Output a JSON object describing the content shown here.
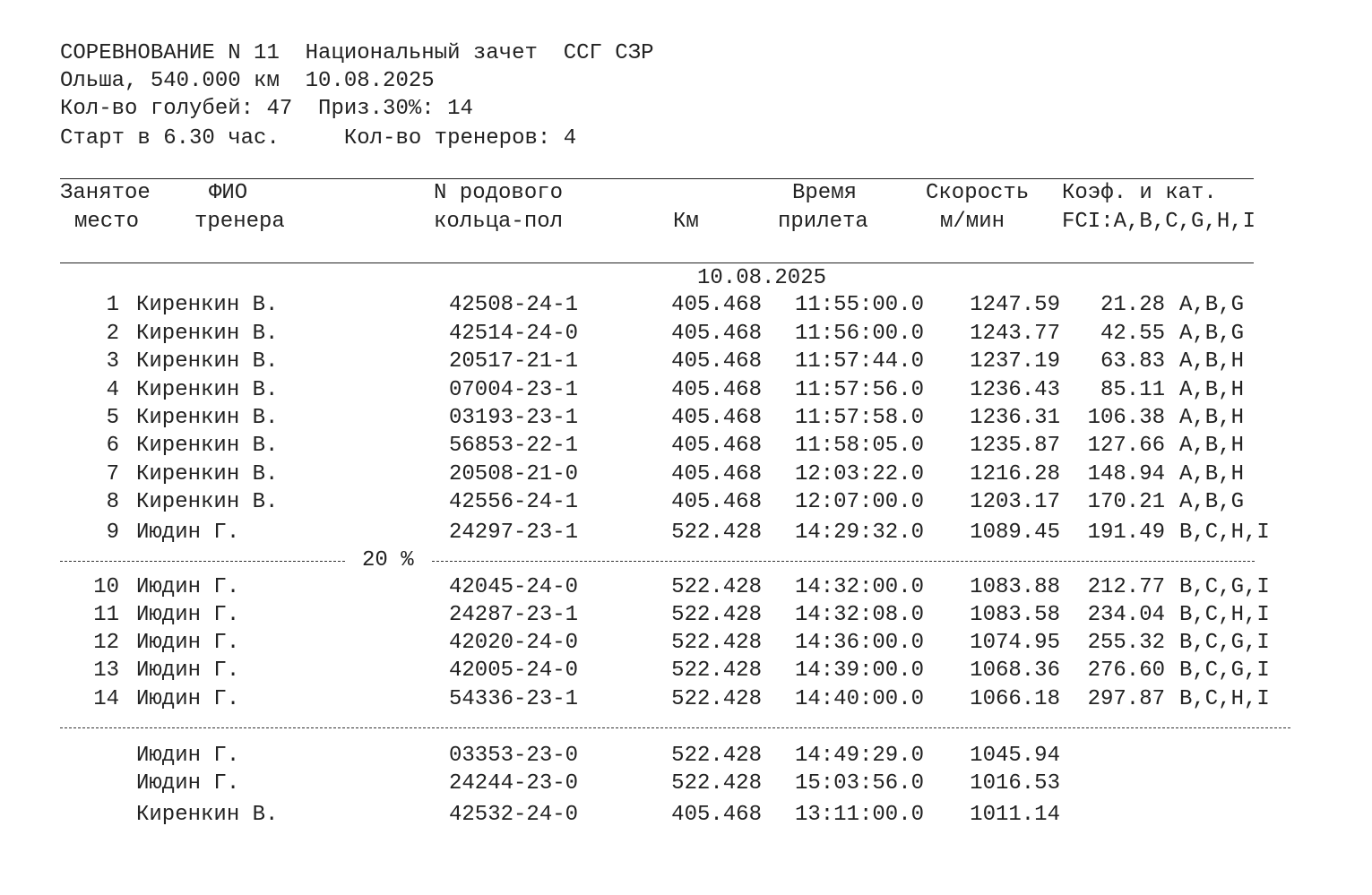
{
  "header": {
    "lines": [
      "СОРЕВНОВАНИЕ N 11  Национальный зачет  ССГ СЗР",
      "Ольша, 540.000 км  10.08.2025",
      "Кол-во голубей: 47  Приз.30%: 14",
      "Старт в 6.30 час.     Кол-во тренеров: 4"
    ]
  },
  "columns": {
    "place": {
      "line1": "Занятое",
      "line2": "место"
    },
    "name": {
      "line1": "ФИО",
      "line2": "тренера"
    },
    "ring": {
      "line1": "N родового",
      "line2": "кольца-пол"
    },
    "km": {
      "line2": "Км"
    },
    "time": {
      "line1": "Время",
      "line2": "прилета"
    },
    "speed": {
      "line1": "Скорость",
      "line2": "м/мин"
    },
    "coef": {
      "line1": "Коэф. и кат.",
      "line2": "FCI:A,B,C,G,H,I"
    }
  },
  "date": "10.08.2025",
  "prize_marker": "20 %",
  "rows": [
    {
      "place": "1",
      "name": "Киренкин В.",
      "ring": "42508-24-1",
      "km": "405.468",
      "time": "11:55:00.0",
      "speed": "1247.59",
      "coef": "21.28",
      "cat": "A,B,G"
    },
    {
      "place": "2",
      "name": "Киренкин В.",
      "ring": "42514-24-0",
      "km": "405.468",
      "time": "11:56:00.0",
      "speed": "1243.77",
      "coef": "42.55",
      "cat": "A,B,G"
    },
    {
      "place": "3",
      "name": "Киренкин В.",
      "ring": "20517-21-1",
      "km": "405.468",
      "time": "11:57:44.0",
      "speed": "1237.19",
      "coef": "63.83",
      "cat": "A,B,H"
    },
    {
      "place": "4",
      "name": "Киренкин В.",
      "ring": "07004-23-1",
      "km": "405.468",
      "time": "11:57:56.0",
      "speed": "1236.43",
      "coef": "85.11",
      "cat": "A,B,H"
    },
    {
      "place": "5",
      "name": "Киренкин В.",
      "ring": "03193-23-1",
      "km": "405.468",
      "time": "11:57:58.0",
      "speed": "1236.31",
      "coef": "106.38",
      "cat": "A,B,H"
    },
    {
      "place": "6",
      "name": "Киренкин В.",
      "ring": "56853-22-1",
      "km": "405.468",
      "time": "11:58:05.0",
      "speed": "1235.87",
      "coef": "127.66",
      "cat": "A,B,H"
    },
    {
      "place": "7",
      "name": "Киренкин В.",
      "ring": "20508-21-0",
      "km": "405.468",
      "time": "12:03:22.0",
      "speed": "1216.28",
      "coef": "148.94",
      "cat": "A,B,H"
    },
    {
      "place": "8",
      "name": "Киренкин В.",
      "ring": "42556-24-1",
      "km": "405.468",
      "time": "12:07:00.0",
      "speed": "1203.17",
      "coef": "170.21",
      "cat": "A,B,G"
    },
    {
      "place": "9",
      "name": "Июдин Г.",
      "ring": "24297-23-1",
      "km": "522.428",
      "time": "14:29:32.0",
      "speed": "1089.45",
      "coef": "191.49",
      "cat": "B,C,H,I"
    },
    {
      "place": "10",
      "name": "Июдин Г.",
      "ring": "42045-24-0",
      "km": "522.428",
      "time": "14:32:00.0",
      "speed": "1083.88",
      "coef": "212.77",
      "cat": "B,C,G,I"
    },
    {
      "place": "11",
      "name": "Июдин Г.",
      "ring": "24287-23-1",
      "km": "522.428",
      "time": "14:32:08.0",
      "speed": "1083.58",
      "coef": "234.04",
      "cat": "B,C,H,I"
    },
    {
      "place": "12",
      "name": "Июдин Г.",
      "ring": "42020-24-0",
      "km": "522.428",
      "time": "14:36:00.0",
      "speed": "1074.95",
      "coef": "255.32",
      "cat": "B,C,G,I"
    },
    {
      "place": "13",
      "name": "Июдин Г.",
      "ring": "42005-24-0",
      "km": "522.428",
      "time": "14:39:00.0",
      "speed": "1068.36",
      "coef": "276.60",
      "cat": "B,C,G,I"
    },
    {
      "place": "14",
      "name": "Июдин Г.",
      "ring": "54336-23-1",
      "km": "522.428",
      "time": "14:40:00.0",
      "speed": "1066.18",
      "coef": "297.87",
      "cat": "B,C,H,I"
    }
  ],
  "extra_rows": [
    {
      "name": "Июдин Г.",
      "ring": "03353-23-0",
      "km": "522.428",
      "time": "14:49:29.0",
      "speed": "1045.94"
    },
    {
      "name": "Июдин Г.",
      "ring": "24244-23-0",
      "km": "522.428",
      "time": "15:03:56.0",
      "speed": "1016.53"
    },
    {
      "name": "Киренкин В.",
      "ring": "42532-24-0",
      "km": "405.468",
      "time": "13:11:00.0",
      "speed": "1011.14"
    }
  ]
}
